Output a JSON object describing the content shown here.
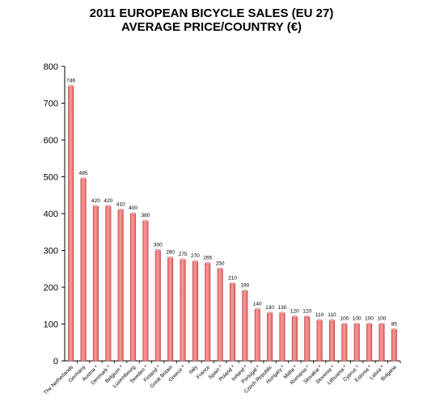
{
  "chart_data": {
    "type": "bar",
    "title": "2011 EUROPEAN BICYCLE SALES (EU 27)",
    "subtitle": "AVERAGE PRICE/COUNTRY (€)",
    "xlabel": "",
    "ylabel": "",
    "ylim": [
      0,
      800
    ],
    "yticks": [
      "0",
      "100",
      "200",
      "300",
      "400",
      "500",
      "600",
      "700",
      "800"
    ],
    "grid": false,
    "bar_color": "#f07c7c",
    "bar_edge_color": "#b04545",
    "categories": [
      "The Netherlands",
      "Germany",
      "Austria *",
      "Denmark *",
      "Belgium *",
      "Luxembourg",
      "Sweden *",
      "Finland *",
      "Great Britain",
      "Greece *",
      "Italy",
      "France",
      "Spain *",
      "Poland *",
      "Ireland *",
      "Portugal *",
      "Czech Republic",
      "Hungary *",
      "Malta *",
      "Romania *",
      "Slovakia *",
      "Slovenia *",
      "Lithuania *",
      "Cyprus *",
      "Estonia *",
      "Latvia *",
      "Bulgaria"
    ],
    "values": [
      746,
      495,
      420,
      420,
      410,
      400,
      380,
      300,
      280,
      275,
      270,
      265,
      250,
      210,
      190,
      140,
      130,
      130,
      120,
      120,
      110,
      110,
      100,
      100,
      100,
      100,
      85
    ],
    "data_labels": [
      "746",
      "495",
      "420",
      "420",
      "410",
      "400",
      "380",
      "300",
      "280",
      "275",
      "270",
      "265",
      "250",
      "210",
      "190",
      "140",
      "130",
      "130",
      "120",
      "120",
      "110",
      "110",
      "100",
      "100",
      "100",
      "100",
      "85"
    ]
  }
}
